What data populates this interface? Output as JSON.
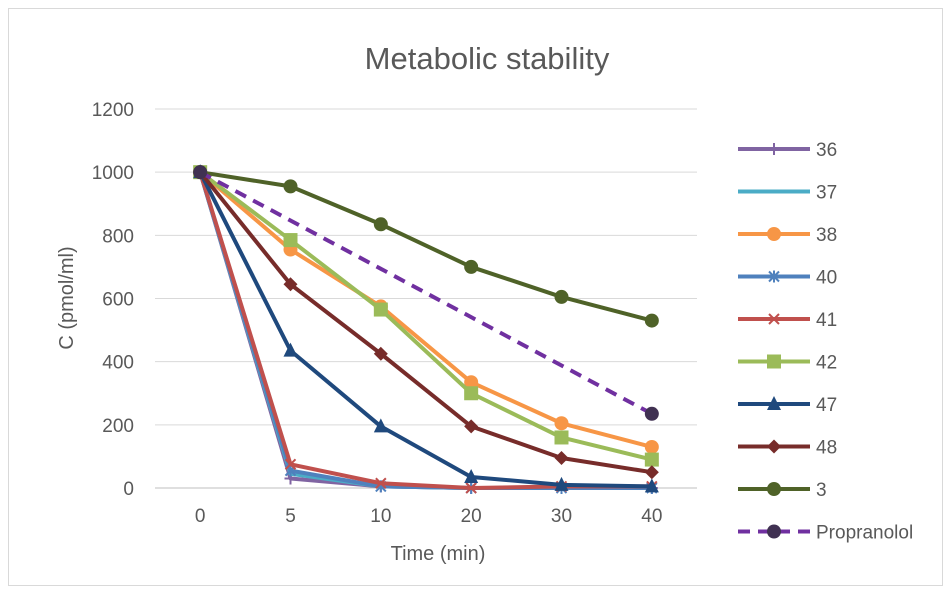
{
  "chart_data": {
    "type": "line",
    "title": "Metabolic stability",
    "xlabel": "Time (min)",
    "ylabel": "C (pmol/ml)",
    "categories": [
      "0",
      "5",
      "10",
      "20",
      "30",
      "40"
    ],
    "ylim": [
      0,
      1200
    ],
    "yticks": [
      0,
      200,
      400,
      600,
      800,
      1000,
      1200
    ],
    "grid": "horizontal",
    "legend_position": "right",
    "series": [
      {
        "name": "36",
        "color": "#8064a2",
        "marker": "plus",
        "dash": false,
        "values": [
          1000,
          30,
          5,
          0,
          0,
          0
        ]
      },
      {
        "name": "37",
        "color": "#4bacc6",
        "marker": "none",
        "dash": false,
        "values": [
          1000,
          45,
          5,
          0,
          0,
          0
        ]
      },
      {
        "name": "38",
        "color": "#f79646",
        "marker": "circle",
        "dash": false,
        "values": [
          1000,
          755,
          575,
          335,
          205,
          130
        ]
      },
      {
        "name": "40",
        "color": "#4f81bd",
        "marker": "asterisk",
        "dash": false,
        "values": [
          1000,
          55,
          5,
          0,
          0,
          0
        ]
      },
      {
        "name": "41",
        "color": "#c0504d",
        "marker": "x",
        "dash": false,
        "values": [
          1000,
          75,
          15,
          0,
          5,
          5
        ]
      },
      {
        "name": "42",
        "color": "#9bbb59",
        "marker": "square",
        "dash": false,
        "values": [
          1000,
          785,
          565,
          300,
          160,
          90
        ]
      },
      {
        "name": "47",
        "color": "#1f497d",
        "marker": "triangle",
        "dash": false,
        "values": [
          1000,
          435,
          195,
          35,
          10,
          5
        ]
      },
      {
        "name": "48",
        "color": "#772c2a",
        "marker": "diamond",
        "dash": false,
        "values": [
          1000,
          645,
          425,
          195,
          95,
          50
        ]
      },
      {
        "name": "3",
        "color": "#4f6228",
        "marker": "circle",
        "dash": false,
        "values": [
          1000,
          955,
          835,
          700,
          605,
          530
        ]
      },
      {
        "name": "Propranolol",
        "color": "#7030a0",
        "marker_color": "#403152",
        "marker": "circle",
        "dash": true,
        "values": [
          1000,
          null,
          null,
          null,
          null,
          235
        ]
      }
    ]
  }
}
